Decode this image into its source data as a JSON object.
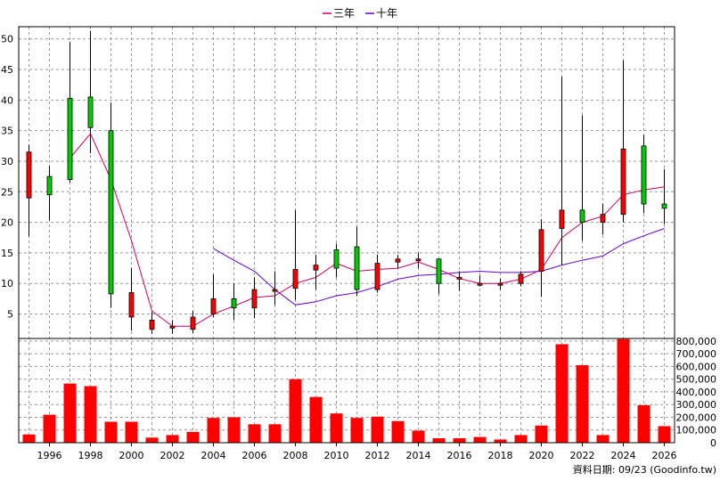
{
  "legend": {
    "series1": "三年",
    "series2": "十年"
  },
  "footer": "資料日期: 09/23 (Goodinfo.tw)",
  "colors": {
    "up": "#ff0000",
    "down": "#00cc00",
    "body_border": "#000000",
    "wick": "#000000",
    "ma3": "#cc0066",
    "ma10": "#6600cc",
    "volume": "#ff0000",
    "grid": "#999999"
  },
  "chart_data": {
    "type": "candlestick+bar",
    "xlabel": "",
    "x_ticks": [
      "1996",
      "1998",
      "2000",
      "2002",
      "2004",
      "2006",
      "2008",
      "2010",
      "2012",
      "2014",
      "2016",
      "2018",
      "2020",
      "2022",
      "2024",
      "2026"
    ],
    "x_range": [
      1994.5,
      2026.5
    ],
    "price_axis": {
      "ticks": [
        5,
        10,
        15,
        20,
        25,
        30,
        35,
        40,
        45,
        50
      ],
      "ylim": [
        1,
        52
      ]
    },
    "volume_axis": {
      "ticks": [
        0,
        100000,
        200000,
        300000,
        400000,
        500000,
        600000,
        700000,
        800000
      ],
      "tick_labels": [
        "0",
        "100,000",
        "200,000",
        "300,000",
        "400,000",
        "500,000",
        "600,000",
        "700,000",
        "800,000"
      ],
      "ylim": [
        0,
        820000
      ]
    },
    "candles": [
      {
        "year": 1995,
        "open": 24,
        "close": 31.5,
        "high": 32.7,
        "low": 17.7
      },
      {
        "year": 1996,
        "open": 27.5,
        "close": 24.5,
        "high": 29.3,
        "low": 20.3
      },
      {
        "year": 1997,
        "open": 40.3,
        "close": 27.0,
        "high": 49.5,
        "low": 26.5
      },
      {
        "year": 1998,
        "open": 40.5,
        "close": 35.5,
        "high": 51.3,
        "low": 31.3
      },
      {
        "year": 1999,
        "open": 35.0,
        "close": 8.3,
        "high": 39.5,
        "low": 6.0
      },
      {
        "year": 2000,
        "open": 4.5,
        "close": 8.5,
        "high": 12.5,
        "low": 2.3
      },
      {
        "year": 2001,
        "open": 2.5,
        "close": 4.0,
        "high": 5.3,
        "low": 1.8
      },
      {
        "year": 2002,
        "open": 3.0,
        "close": 3.0,
        "high": 4.0,
        "low": 1.8
      },
      {
        "year": 2003,
        "open": 2.5,
        "close": 4.5,
        "high": 5.5,
        "low": 1.9
      },
      {
        "year": 2004,
        "open": 5.0,
        "close": 7.5,
        "high": 11.5,
        "low": 4.5
      },
      {
        "year": 2005,
        "open": 7.5,
        "close": 6.0,
        "high": 10.0,
        "low": 4.0
      },
      {
        "year": 2006,
        "open": 6.0,
        "close": 9.0,
        "high": 11.0,
        "low": 4.3
      },
      {
        "year": 2007,
        "open": 9.0,
        "close": 9.0,
        "high": 12.0,
        "low": 6.5
      },
      {
        "year": 2008,
        "open": 9.2,
        "close": 12.3,
        "high": 22.0,
        "low": 7.3
      },
      {
        "year": 2009,
        "open": 12.2,
        "close": 13.0,
        "high": 14.7,
        "low": 9.0
      },
      {
        "year": 2010,
        "open": 15.5,
        "close": 12.5,
        "high": 16.5,
        "low": 11.0
      },
      {
        "year": 2011,
        "open": 16.0,
        "close": 9.0,
        "high": 19.3,
        "low": 8.0
      },
      {
        "year": 2012,
        "open": 9.0,
        "close": 13.3,
        "high": 14.7,
        "low": 8.5
      },
      {
        "year": 2013,
        "open": 13.5,
        "close": 14.0,
        "high": 14.7,
        "low": 12.5
      },
      {
        "year": 2014,
        "open": 13.8,
        "close": 14.0,
        "high": 15.0,
        "low": 12.5
      },
      {
        "year": 2015,
        "open": 14.0,
        "close": 10.0,
        "high": 14.0,
        "low": 8.3
      },
      {
        "year": 2016,
        "open": 11.0,
        "close": 11.0,
        "high": 12.0,
        "low": 8.8
      },
      {
        "year": 2017,
        "open": 10.0,
        "close": 10.0,
        "high": 11.3,
        "low": 9.5
      },
      {
        "year": 2018,
        "open": 10.0,
        "close": 10.0,
        "high": 10.8,
        "low": 9.0
      },
      {
        "year": 2019,
        "open": 10.0,
        "close": 11.5,
        "high": 12.0,
        "low": 9.5
      },
      {
        "year": 2020,
        "open": 12.0,
        "close": 18.8,
        "high": 20.5,
        "low": 7.8
      },
      {
        "year": 2021,
        "open": 19.0,
        "close": 22.0,
        "high": 43.8,
        "low": 13.0
      },
      {
        "year": 2022,
        "open": 22.0,
        "close": 20.0,
        "high": 37.5,
        "low": 17.0
      },
      {
        "year": 2023,
        "open": 20.0,
        "close": 21.3,
        "high": 23.0,
        "low": 18.0
      },
      {
        "year": 2024,
        "open": 21.3,
        "close": 32.0,
        "high": 46.5,
        "low": 20.0
      },
      {
        "year": 2025,
        "open": 32.5,
        "close": 23.0,
        "high": 34.3,
        "low": 21.5
      },
      {
        "year": 2026,
        "open": 23.0,
        "close": 22.3,
        "high": 28.7,
        "low": 19.7
      }
    ],
    "ma3": {
      "name": "三年",
      "points": [
        [
          1997,
          30.5
        ],
        [
          1998,
          34.5
        ],
        [
          1999,
          27.0
        ],
        [
          2000,
          17.0
        ],
        [
          2001,
          5.5
        ],
        [
          2002,
          3.0
        ],
        [
          2003,
          3.0
        ],
        [
          2004,
          5.0
        ],
        [
          2005,
          6.3
        ],
        [
          2006,
          7.7
        ],
        [
          2007,
          8.0
        ],
        [
          2008,
          10.0
        ],
        [
          2009,
          11.0
        ],
        [
          2010,
          13.3
        ],
        [
          2011,
          12.0
        ],
        [
          2012,
          12.3
        ],
        [
          2013,
          12.5
        ],
        [
          2014,
          13.5
        ],
        [
          2015,
          12.3
        ],
        [
          2016,
          10.8
        ],
        [
          2017,
          10.0
        ],
        [
          2018,
          10.0
        ],
        [
          2019,
          10.7
        ],
        [
          2020,
          12.3
        ],
        [
          2021,
          17.5
        ],
        [
          2022,
          20.0
        ],
        [
          2023,
          21.0
        ],
        [
          2024,
          24.5
        ],
        [
          2025,
          25.3
        ],
        [
          2026,
          25.8
        ]
      ]
    },
    "ma10": {
      "name": "十年",
      "points": [
        [
          2004,
          15.7
        ],
        [
          2005,
          13.8
        ],
        [
          2006,
          12.0
        ],
        [
          2007,
          9.0
        ],
        [
          2008,
          6.5
        ],
        [
          2009,
          7.0
        ],
        [
          2010,
          8.0
        ],
        [
          2011,
          8.5
        ],
        [
          2012,
          9.5
        ],
        [
          2013,
          10.7
        ],
        [
          2014,
          11.3
        ],
        [
          2015,
          11.5
        ],
        [
          2016,
          11.8
        ],
        [
          2017,
          12.0
        ],
        [
          2018,
          11.8
        ],
        [
          2019,
          11.8
        ],
        [
          2020,
          12.0
        ],
        [
          2021,
          13.0
        ],
        [
          2022,
          13.8
        ],
        [
          2023,
          14.5
        ],
        [
          2024,
          16.5
        ],
        [
          2025,
          17.8
        ],
        [
          2026,
          19.0
        ]
      ]
    },
    "volume": [
      {
        "year": 1995,
        "value": 65000
      },
      {
        "year": 1996,
        "value": 220000
      },
      {
        "year": 1997,
        "value": 465000
      },
      {
        "year": 1998,
        "value": 445000
      },
      {
        "year": 1999,
        "value": 165000
      },
      {
        "year": 2000,
        "value": 165000
      },
      {
        "year": 2001,
        "value": 40000
      },
      {
        "year": 2002,
        "value": 60000
      },
      {
        "year": 2003,
        "value": 85000
      },
      {
        "year": 2004,
        "value": 195000
      },
      {
        "year": 2005,
        "value": 200000
      },
      {
        "year": 2006,
        "value": 145000
      },
      {
        "year": 2007,
        "value": 145000
      },
      {
        "year": 2008,
        "value": 500000
      },
      {
        "year": 2009,
        "value": 360000
      },
      {
        "year": 2010,
        "value": 230000
      },
      {
        "year": 2011,
        "value": 195000
      },
      {
        "year": 2012,
        "value": 205000
      },
      {
        "year": 2013,
        "value": 170000
      },
      {
        "year": 2014,
        "value": 95000
      },
      {
        "year": 2015,
        "value": 35000
      },
      {
        "year": 2016,
        "value": 35000
      },
      {
        "year": 2017,
        "value": 45000
      },
      {
        "year": 2018,
        "value": 25000
      },
      {
        "year": 2019,
        "value": 60000
      },
      {
        "year": 2020,
        "value": 135000
      },
      {
        "year": 2021,
        "value": 775000
      },
      {
        "year": 2022,
        "value": 610000
      },
      {
        "year": 2023,
        "value": 60000
      },
      {
        "year": 2024,
        "value": 815000
      },
      {
        "year": 2025,
        "value": 295000
      },
      {
        "year": 2026,
        "value": 130000
      }
    ],
    "grid": true,
    "legend_position": "top-center"
  }
}
